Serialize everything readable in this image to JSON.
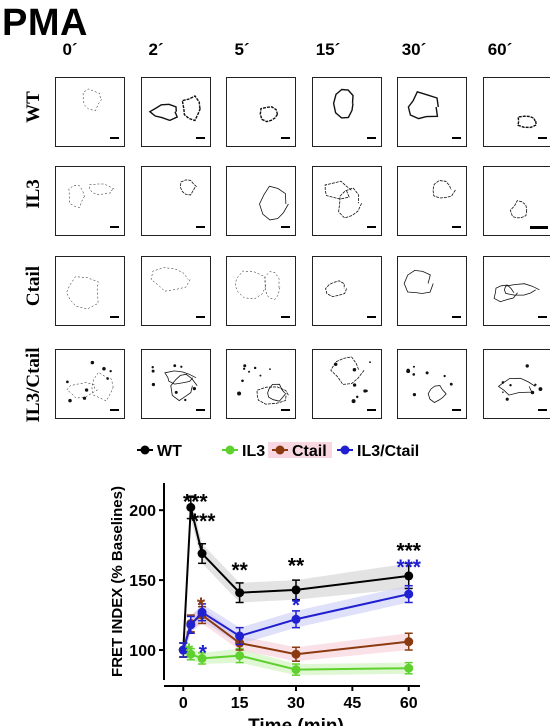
{
  "figure": {
    "title": "PMA",
    "time_points": [
      "0´",
      "2´",
      "5´",
      "15´",
      "30´",
      "60´"
    ],
    "rows": [
      "WT",
      "IL3",
      "Ctail",
      "IL3/Ctail"
    ]
  },
  "chart_data": {
    "type": "line",
    "ylabel": "FRET INDEX (% Baselines)",
    "xlabel": "Time (min)",
    "xlim": [
      -3,
      63
    ],
    "ylim": [
      80,
      218
    ],
    "xticks": [
      0,
      15,
      30,
      45,
      60
    ],
    "yticks": [
      100,
      150,
      200
    ],
    "legend_position": "top",
    "series": [
      {
        "name": "WT",
        "color": "#000000",
        "band": "#cccccc",
        "x": [
          0,
          2,
          5,
          15,
          30,
          60
        ],
        "y": [
          100,
          202,
          169,
          141,
          143,
          153
        ],
        "err": [
          5,
          8,
          7,
          7,
          7,
          9
        ]
      },
      {
        "name": "IL3",
        "color": "#5fd12e",
        "band": "#c6f0b0",
        "x": [
          0,
          2,
          5,
          15,
          30,
          60
        ],
        "y": [
          100,
          97,
          94,
          96,
          86,
          87
        ],
        "err": [
          5,
          4,
          4,
          5,
          4,
          4
        ]
      },
      {
        "name": "Ctail",
        "color": "#8b3a10",
        "band": "#f5c6d4",
        "x": [
          0,
          2,
          5,
          15,
          30,
          60
        ],
        "y": [
          100,
          119,
          125,
          105,
          97,
          106
        ],
        "err": [
          5,
          6,
          6,
          5,
          5,
          6
        ]
      },
      {
        "name": "IL3/Ctail",
        "color": "#2020d0",
        "band": "#c4c6f4",
        "x": [
          0,
          2,
          5,
          15,
          30,
          60
        ],
        "y": [
          100,
          118,
          127,
          110,
          122,
          140
        ],
        "err": [
          5,
          6,
          6,
          6,
          6,
          6
        ]
      }
    ],
    "annotations": [
      {
        "text": "***",
        "x": 3.2,
        "y": 207,
        "color": "#000000"
      },
      {
        "text": "***",
        "x": 5.3,
        "y": 193,
        "color": "#000000"
      },
      {
        "text": "**",
        "x": 15,
        "y": 158,
        "color": "#000000"
      },
      {
        "text": "**",
        "x": 30,
        "y": 161,
        "color": "#000000"
      },
      {
        "text": "*",
        "x": 30,
        "y": 133,
        "color": "#2020d0"
      },
      {
        "text": "***",
        "x": 60,
        "y": 172,
        "color": "#000000"
      },
      {
        "text": "***",
        "x": 60,
        "y": 160,
        "color": "#2020d0"
      },
      {
        "text": "*",
        "x": 4.7,
        "y": 133,
        "color": "#8b3a10"
      },
      {
        "text": "*",
        "x": 1.5,
        "y": 100,
        "color": "#5fd12e"
      },
      {
        "text": "*",
        "x": 5.2,
        "y": 99,
        "color": "#2020d0"
      }
    ]
  }
}
